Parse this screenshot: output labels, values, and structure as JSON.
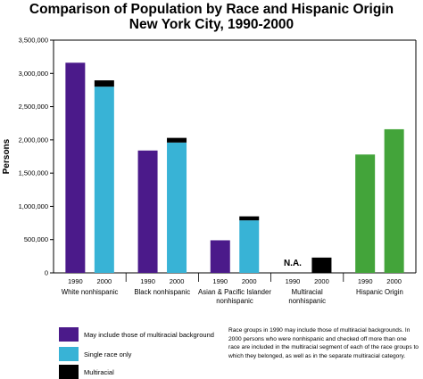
{
  "chart_data": {
    "type": "bar",
    "title_lines": [
      "Comparison of Population by Race and Hispanic Origin",
      "New York City, 1990-2000"
    ],
    "ylabel": "Persons",
    "ylim": [
      0,
      3500000
    ],
    "yticks": [
      "0",
      "500,000",
      "1,000,000",
      "1,500,000",
      "2,000,000",
      "2,500,000",
      "3,000,000",
      "3,500,000"
    ],
    "groups": [
      {
        "label": "White nonhispanic",
        "label_lines": [
          "White nonhispanic"
        ],
        "bars": [
          {
            "year": "1990",
            "segments": [
              {
                "series": "multiracial_inclusive",
                "value": 3160000
              }
            ]
          },
          {
            "year": "2000",
            "segments": [
              {
                "series": "single_race",
                "value": 2800000
              },
              {
                "series": "multiracial",
                "value": 95000
              }
            ]
          }
        ]
      },
      {
        "label": "Black nonhispanic",
        "label_lines": [
          "Black nonhispanic"
        ],
        "bars": [
          {
            "year": "1990",
            "segments": [
              {
                "series": "multiracial_inclusive",
                "value": 1840000
              }
            ]
          },
          {
            "year": "2000",
            "segments": [
              {
                "series": "single_race",
                "value": 1960000
              },
              {
                "series": "multiracial",
                "value": 70000
              }
            ]
          }
        ]
      },
      {
        "label": "Asian & Pacific Islander nonhispanic",
        "label_lines": [
          "Asian & Pacific Islander",
          "nonhispanic"
        ],
        "bars": [
          {
            "year": "1990",
            "segments": [
              {
                "series": "multiracial_inclusive",
                "value": 490000
              }
            ]
          },
          {
            "year": "2000",
            "segments": [
              {
                "series": "single_race",
                "value": 790000
              },
              {
                "series": "multiracial",
                "value": 60000
              }
            ]
          }
        ]
      },
      {
        "label": "Multiracial nonhispanic",
        "label_lines": [
          "Multiracial",
          "nonhispanic"
        ],
        "bars": [
          {
            "year": "1990",
            "text": "N.A.",
            "segments": []
          },
          {
            "year": "2000",
            "segments": [
              {
                "series": "multiracial",
                "value": 230000
              }
            ]
          }
        ]
      },
      {
        "label": "Hispanic Origin",
        "label_lines": [
          "Hispanic Origin"
        ],
        "bars": [
          {
            "year": "1990",
            "segments": [
              {
                "series": "hispanic",
                "value": 1780000
              }
            ]
          },
          {
            "year": "2000",
            "segments": [
              {
                "series": "hispanic",
                "value": 2160000
              }
            ]
          }
        ]
      }
    ],
    "legend": [
      {
        "key": "multiracial_inclusive",
        "label": "May include those of multiracial background",
        "color": "#4b1a8a"
      },
      {
        "key": "single_race",
        "label": "Single race only",
        "color": "#38b3d6"
      },
      {
        "key": "multiracial",
        "label": "Multiracial",
        "color": "#000000"
      }
    ],
    "series_colors": {
      "multiracial_inclusive": "#4b1a8a",
      "single_race": "#38b3d6",
      "multiracial": "#000000",
      "hispanic": "#43a43a"
    },
    "note": "Race groups in 1990 may include those of multiracial backgrounds. In 2000 persons who were nonhispanic and checked off more than one race are included in the multiracial segment of each of the race groups to which they belonged, as well as in the separate multiracial category.",
    "grid": false,
    "legend_position": "bottom-left"
  }
}
